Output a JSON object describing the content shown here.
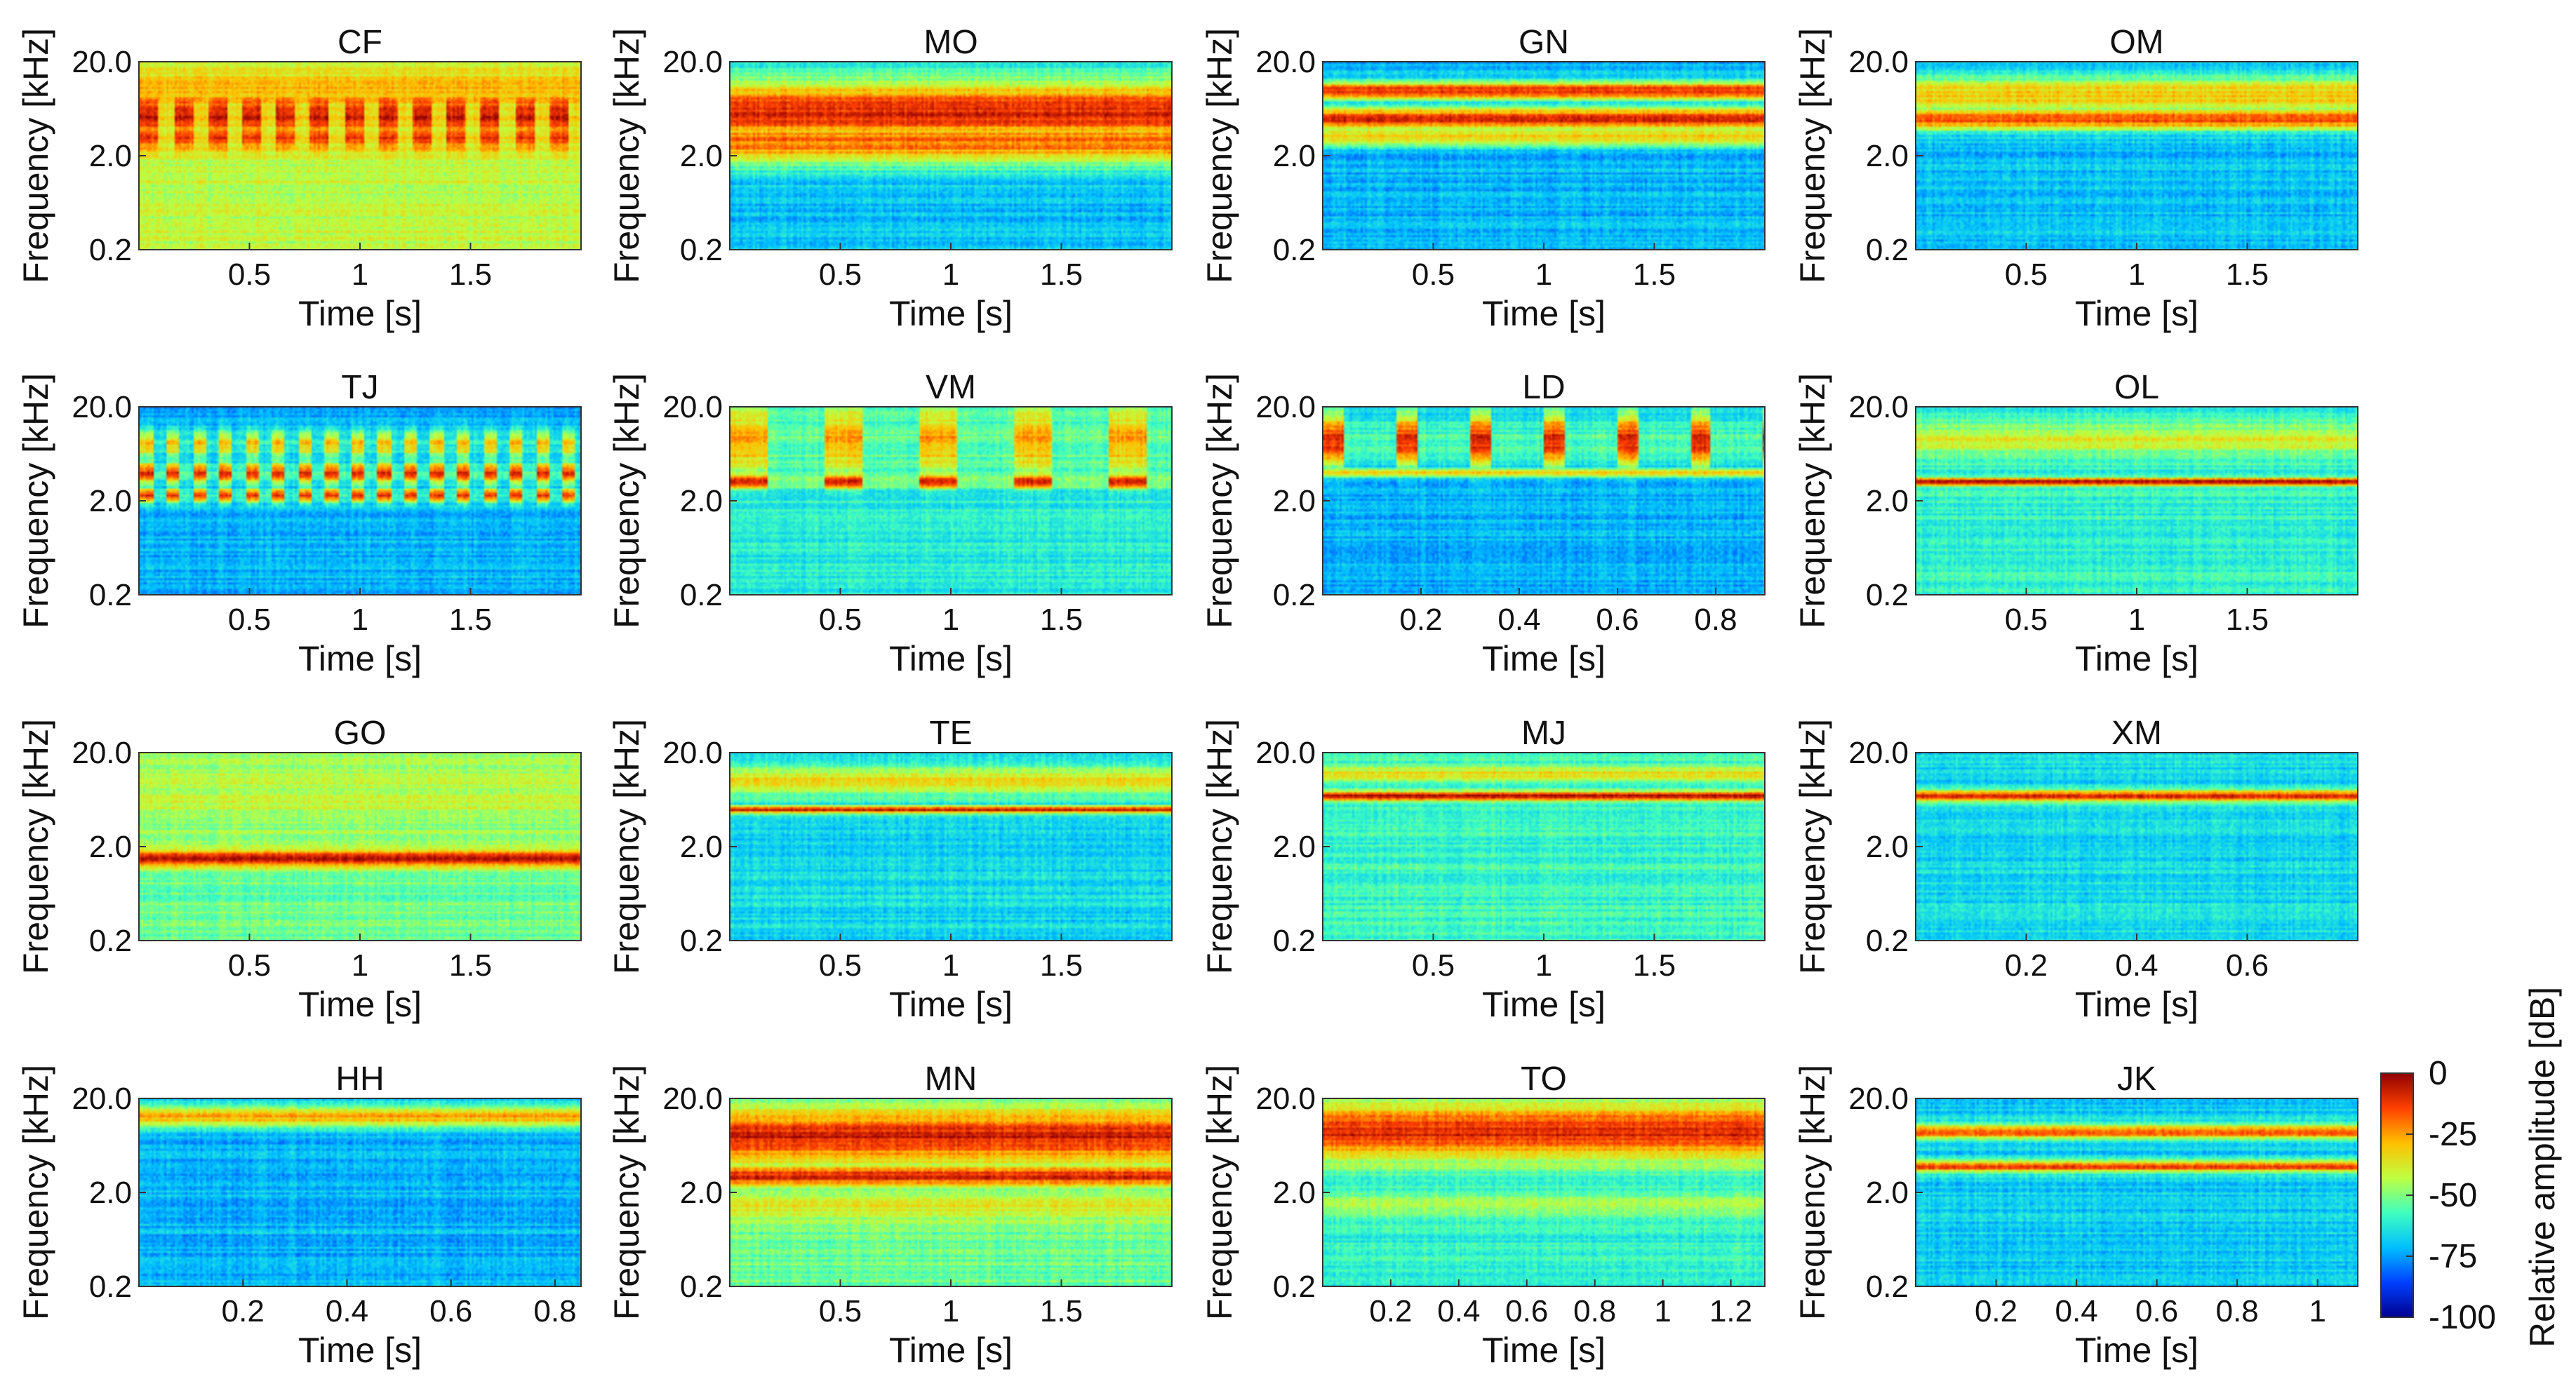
{
  "colormap": [
    "#00008f",
    "#0040ff",
    "#00bfff",
    "#40ffbf",
    "#bfff40",
    "#ffbf00",
    "#ff4000",
    "#8f0000"
  ],
  "chart_data": [
    {
      "type": "heatmap",
      "title": "CF",
      "xlabel": "Time [s]",
      "ylabel": "Frequency [kHz]",
      "xlim": [
        0,
        2
      ],
      "xticks": [
        0.5,
        1,
        1.5
      ],
      "xtick_labels": [
        "0.5",
        "1",
        "1.5"
      ],
      "ylim": [
        0.2,
        20.0
      ],
      "yscale": "log",
      "yticks": [
        0.2,
        2.0,
        20.0
      ],
      "ytick_labels": [
        "0.2",
        "2.0",
        "20.0"
      ],
      "pattern": {
        "bands": [
          {
            "f": 5.5,
            "dB": -8,
            "w": 0.22,
            "pulsed": true
          },
          {
            "f": 3.2,
            "dB": -14,
            "w": 0.15,
            "pulsed": true
          },
          {
            "f": 10.0,
            "dB": -28,
            "w": 0.2
          }
        ],
        "floor": -42,
        "pulses": {
          "period": 0.155,
          "duty": 0.55
        }
      }
    },
    {
      "type": "heatmap",
      "title": "MO",
      "xlabel": "Time [s]",
      "ylabel": "Frequency [kHz]",
      "xlim": [
        0,
        2
      ],
      "xticks": [
        0.5,
        1,
        1.5
      ],
      "xtick_labels": [
        "0.5",
        "1",
        "1.5"
      ],
      "ylim": [
        0.2,
        20.0
      ],
      "yscale": "log",
      "yticks": [
        0.2,
        2.0,
        20.0
      ],
      "ytick_labels": [
        "0.2",
        "2.0",
        "20.0"
      ],
      "pattern": {
        "bands": [
          {
            "f": 6.0,
            "dB": -10,
            "w": 0.35
          },
          {
            "f": 2.8,
            "dB": -20,
            "w": 0.25
          }
        ],
        "floor": -70
      }
    },
    {
      "type": "heatmap",
      "title": "GN",
      "xlabel": "Time [s]",
      "ylabel": "Frequency [kHz]",
      "xlim": [
        0,
        2
      ],
      "xticks": [
        0.5,
        1,
        1.5
      ],
      "xtick_labels": [
        "0.5",
        "1",
        "1.5"
      ],
      "ylim": [
        0.2,
        20.0
      ],
      "yscale": "log",
      "yticks": [
        0.2,
        2.0,
        20.0
      ],
      "ytick_labels": [
        "0.2",
        "2.0",
        "20.0"
      ],
      "pattern": {
        "bands": [
          {
            "f": 10.0,
            "dB": -10,
            "w": 0.1
          },
          {
            "f": 5.0,
            "dB": -8,
            "w": 0.12
          },
          {
            "f": 3.2,
            "dB": -30,
            "w": 0.1
          }
        ],
        "floor": -72
      }
    },
    {
      "type": "heatmap",
      "title": "OM",
      "xlabel": "Time [s]",
      "ylabel": "Frequency [kHz]",
      "xlim": [
        0,
        2
      ],
      "xticks": [
        0.5,
        1,
        1.5
      ],
      "xtick_labels": [
        "0.5",
        "1",
        "1.5"
      ],
      "ylim": [
        0.2,
        20.0
      ],
      "yscale": "log",
      "yticks": [
        0.2,
        2.0,
        20.0
      ],
      "ytick_labels": [
        "0.2",
        "2.0",
        "20.0"
      ],
      "pattern": {
        "bands": [
          {
            "f": 5.0,
            "dB": -14,
            "w": 0.12
          },
          {
            "f": 9.0,
            "dB": -30,
            "w": 0.2
          }
        ],
        "floor": -70,
        "pulses": {
          "period": 0.5,
          "duty": 0.8
        }
      }
    },
    {
      "type": "heatmap",
      "title": "TJ",
      "xlabel": "Time [s]",
      "ylabel": "Frequency [kHz]",
      "xlim": [
        0,
        2
      ],
      "xticks": [
        0.5,
        1,
        1.5
      ],
      "xtick_labels": [
        "0.5",
        "1",
        "1.5"
      ],
      "ylim": [
        0.2,
        20.0
      ],
      "yscale": "log",
      "yticks": [
        0.2,
        2.0,
        20.0
      ],
      "ytick_labels": [
        "0.2",
        "2.0",
        "20.0"
      ],
      "pattern": {
        "bands": [
          {
            "f": 4.0,
            "dB": -12,
            "w": 0.12,
            "pulsed": true
          },
          {
            "f": 2.3,
            "dB": -10,
            "w": 0.08,
            "pulsed": true
          },
          {
            "f": 8.0,
            "dB": -30,
            "w": 0.15,
            "pulsed": true
          }
        ],
        "floor": -72,
        "pulses": {
          "period": 0.12,
          "duty": 0.5
        }
      }
    },
    {
      "type": "heatmap",
      "title": "VM",
      "xlabel": "Time [s]",
      "ylabel": "Frequency [kHz]",
      "xlim": [
        0,
        2
      ],
      "xticks": [
        0.5,
        1,
        1.5
      ],
      "xtick_labels": [
        "0.5",
        "1",
        "1.5"
      ],
      "ylim": [
        0.2,
        20.0
      ],
      "yscale": "log",
      "yticks": [
        0.2,
        2.0,
        20.0
      ],
      "ytick_labels": [
        "0.2",
        "2.0",
        "20.0"
      ],
      "pattern": {
        "bands": [
          {
            "f": 3.2,
            "dB": -5,
            "w": 0.07,
            "pulsed": true
          },
          {
            "f": 9.0,
            "dB": -25,
            "w": 0.35,
            "pulsed": true
          }
        ],
        "floor": -62,
        "pulses": {
          "period": 0.43,
          "duty": 0.4
        }
      }
    },
    {
      "type": "heatmap",
      "title": "LD",
      "xlabel": "Time [s]",
      "ylabel": "Frequency [kHz]",
      "xlim": [
        0,
        0.9
      ],
      "xticks": [
        0.2,
        0.4,
        0.6,
        0.8
      ],
      "xtick_labels": [
        "0.2",
        "0.4",
        "0.6",
        "0.8"
      ],
      "ylim": [
        0.2,
        20.0
      ],
      "yscale": "log",
      "yticks": [
        0.2,
        2.0,
        20.0
      ],
      "ytick_labels": [
        "0.2",
        "2.0",
        "20.0"
      ],
      "pattern": {
        "bands": [
          {
            "f": 9.0,
            "dB": -10,
            "w": 0.3,
            "pulsed": true
          },
          {
            "f": 4.0,
            "dB": -30,
            "w": 0.05
          }
        ],
        "floor": -72,
        "pulses": {
          "period": 0.15,
          "duty": 0.28
        }
      }
    },
    {
      "type": "heatmap",
      "title": "OL",
      "xlabel": "Time [s]",
      "ylabel": "Frequency [kHz]",
      "xlim": [
        0,
        2
      ],
      "xticks": [
        0.5,
        1,
        1.5
      ],
      "xtick_labels": [
        "0.5",
        "1",
        "1.5"
      ],
      "ylim": [
        0.2,
        20.0
      ],
      "yscale": "log",
      "yticks": [
        0.2,
        2.0,
        20.0
      ],
      "ytick_labels": [
        "0.2",
        "2.0",
        "20.0"
      ],
      "pattern": {
        "bands": [
          {
            "f": 3.2,
            "dB": -3,
            "w": 0.04
          },
          {
            "f": 9.0,
            "dB": -38,
            "w": 0.15
          }
        ],
        "floor": -60
      }
    },
    {
      "type": "heatmap",
      "title": "GO",
      "xlabel": "Time [s]",
      "ylabel": "Frequency [kHz]",
      "xlim": [
        0,
        2
      ],
      "xticks": [
        0.5,
        1,
        1.5
      ],
      "xtick_labels": [
        "0.5",
        "1",
        "1.5"
      ],
      "ylim": [
        0.2,
        20.0
      ],
      "yscale": "log",
      "yticks": [
        0.2,
        2.0,
        20.0
      ],
      "ytick_labels": [
        "0.2",
        "2.0",
        "20.0"
      ],
      "pattern": {
        "bands": [
          {
            "f": 1.5,
            "dB": -4,
            "w": 0.09
          },
          {
            "f": 7.0,
            "dB": -42,
            "w": 0.4
          }
        ],
        "floor": -52
      }
    },
    {
      "type": "heatmap",
      "title": "TE",
      "xlabel": "Time [s]",
      "ylabel": "Frequency [kHz]",
      "xlim": [
        0,
        2
      ],
      "xticks": [
        0.5,
        1,
        1.5
      ],
      "xtick_labels": [
        "0.5",
        "1",
        "1.5"
      ],
      "ylim": [
        0.2,
        20.0
      ],
      "yscale": "log",
      "yticks": [
        0.2,
        2.0,
        20.0
      ],
      "ytick_labels": [
        "0.2",
        "2.0",
        "20.0"
      ],
      "pattern": {
        "bands": [
          {
            "f": 5.0,
            "dB": -5,
            "w": 0.04
          },
          {
            "f": 10.0,
            "dB": -32,
            "w": 0.15
          }
        ],
        "floor": -66
      }
    },
    {
      "type": "heatmap",
      "title": "MJ",
      "xlabel": "Time [s]",
      "ylabel": "Frequency [kHz]",
      "xlim": [
        0,
        2
      ],
      "xticks": [
        0.5,
        1,
        1.5
      ],
      "xtick_labels": [
        "0.5",
        "1",
        "1.5"
      ],
      "ylim": [
        0.2,
        20.0
      ],
      "yscale": "log",
      "yticks": [
        0.2,
        2.0,
        20.0
      ],
      "ytick_labels": [
        "0.2",
        "2.0",
        "20.0"
      ],
      "pattern": {
        "bands": [
          {
            "f": 7.0,
            "dB": -5,
            "w": 0.05
          },
          {
            "f": 12.0,
            "dB": -34,
            "w": 0.08
          }
        ],
        "floor": -58
      }
    },
    {
      "type": "heatmap",
      "title": "XM",
      "xlabel": "Time [s]",
      "ylabel": "Frequency [kHz]",
      "xlim": [
        0,
        0.8
      ],
      "xticks": [
        0.2,
        0.4,
        0.6
      ],
      "xtick_labels": [
        "0.2",
        "0.4",
        "0.6"
      ],
      "ylim": [
        0.2,
        20.0
      ],
      "yscale": "log",
      "yticks": [
        0.2,
        2.0,
        20.0
      ],
      "ytick_labels": [
        "0.2",
        "2.0",
        "20.0"
      ],
      "pattern": {
        "bands": [
          {
            "f": 7.0,
            "dB": -8,
            "w": 0.06
          }
        ],
        "floor": -66
      }
    },
    {
      "type": "heatmap",
      "title": "HH",
      "xlabel": "Time [s]",
      "ylabel": "Frequency [kHz]",
      "xlim": [
        0,
        0.85
      ],
      "xticks": [
        0.2,
        0.4,
        0.6,
        0.8
      ],
      "xtick_labels": [
        "0.2",
        "0.4",
        "0.6",
        "0.8"
      ],
      "ylim": [
        0.2,
        20.0
      ],
      "yscale": "log",
      "yticks": [
        0.2,
        2.0,
        20.0
      ],
      "ytick_labels": [
        "0.2",
        "2.0",
        "20.0"
      ],
      "pattern": {
        "bands": [
          {
            "f": 13.0,
            "dB": -26,
            "w": 0.12
          }
        ],
        "floor": -72
      }
    },
    {
      "type": "heatmap",
      "title": "MN",
      "xlabel": "Time [s]",
      "ylabel": "Frequency [kHz]",
      "xlim": [
        0,
        2
      ],
      "xticks": [
        0.5,
        1,
        1.5
      ],
      "xtick_labels": [
        "0.5",
        "1",
        "1.5"
      ],
      "ylim": [
        0.2,
        20.0
      ],
      "yscale": "log",
      "yticks": [
        0.2,
        2.0,
        20.0
      ],
      "ytick_labels": [
        "0.2",
        "2.0",
        "20.0"
      ],
      "pattern": {
        "bands": [
          {
            "f": 8.0,
            "dB": -8,
            "w": 0.25
          },
          {
            "f": 3.0,
            "dB": -8,
            "w": 0.1
          },
          {
            "f": 1.4,
            "dB": -38,
            "w": 0.15
          }
        ],
        "floor": -52
      }
    },
    {
      "type": "heatmap",
      "title": "TO",
      "xlabel": "Time [s]",
      "ylabel": "Frequency [kHz]",
      "xlim": [
        0,
        1.3
      ],
      "xticks": [
        0.2,
        0.4,
        0.6,
        0.8,
        1,
        1.2
      ],
      "xtick_labels": [
        "0.2",
        "0.4",
        "0.6",
        "0.8",
        "1",
        "1.2"
      ],
      "ylim": [
        0.2,
        20.0
      ],
      "yscale": "log",
      "yticks": [
        0.2,
        2.0,
        20.0
      ],
      "ytick_labels": [
        "0.2",
        "2.0",
        "20.0"
      ],
      "pattern": {
        "bands": [
          {
            "f": 9.0,
            "dB": -10,
            "w": 0.3
          },
          {
            "f": 1.5,
            "dB": -40,
            "w": 0.1
          }
        ],
        "floor": -60
      }
    },
    {
      "type": "heatmap",
      "title": "JK",
      "xlabel": "Time [s]",
      "ylabel": "Frequency [kHz]",
      "xlim": [
        0,
        1.1
      ],
      "xticks": [
        0.2,
        0.4,
        0.6,
        0.8,
        1
      ],
      "xtick_labels": [
        "0.2",
        "0.4",
        "0.6",
        "0.8",
        "1"
      ],
      "ylim": [
        0.2,
        20.0
      ],
      "yscale": "log",
      "yticks": [
        0.2,
        2.0,
        20.0
      ],
      "ytick_labels": [
        "0.2",
        "2.0",
        "20.0"
      ],
      "pattern": {
        "bands": [
          {
            "f": 9.0,
            "dB": -15,
            "w": 0.08
          },
          {
            "f": 3.8,
            "dB": -12,
            "w": 0.06
          }
        ],
        "floor": -68
      }
    }
  ],
  "colorbar": {
    "label": "Relative amplitude [dB]",
    "min": -100,
    "max": 0,
    "ticks": [
      0,
      -25,
      -50,
      -75,
      -100
    ],
    "tick_labels": [
      "0",
      "-25",
      "-50",
      "-75",
      "-100"
    ]
  }
}
